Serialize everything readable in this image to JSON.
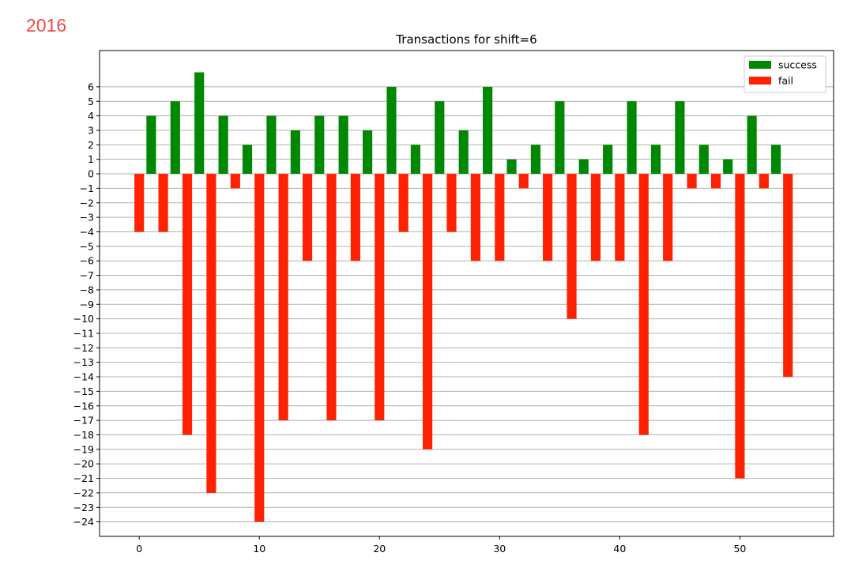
{
  "watermark": {
    "year": "2016"
  },
  "chart_data": {
    "type": "bar",
    "title": "Transactions for shift=6",
    "xlabel": "",
    "ylabel": "",
    "xlim": [
      -3.3,
      57.8
    ],
    "ylim": [
      -25,
      8.5
    ],
    "x_ticks": [
      0,
      10,
      20,
      30,
      40,
      50
    ],
    "y_ticks": [
      6,
      5,
      4,
      3,
      2,
      1,
      0,
      -1,
      -2,
      -3,
      -4,
      -5,
      -6,
      -7,
      -8,
      -9,
      -10,
      -11,
      -12,
      -13,
      -14,
      -15,
      -16,
      -17,
      -18,
      -19,
      -20,
      -21,
      -22,
      -23,
      -24
    ],
    "grid": "horizontal",
    "legend_position": "top-right",
    "colors": {
      "success": "#008800",
      "fail": "#ff2200",
      "grid": "#b0b0b0"
    },
    "series": [
      {
        "name": "success",
        "x": [
          1,
          3,
          5,
          7,
          9,
          11,
          13,
          15,
          17,
          19,
          21,
          23,
          25,
          27,
          29,
          31,
          33,
          35,
          37,
          39,
          41,
          43,
          45,
          47,
          49,
          51,
          53
        ],
        "values": [
          4,
          5,
          7,
          4,
          2,
          4,
          3,
          4,
          4,
          3,
          6,
          2,
          5,
          3,
          6,
          1,
          2,
          5,
          1,
          2,
          5,
          2,
          5,
          2,
          1,
          4,
          2
        ]
      },
      {
        "name": "fail",
        "x": [
          0,
          2,
          4,
          6,
          8,
          10,
          12,
          14,
          16,
          18,
          20,
          22,
          24,
          26,
          28,
          30,
          32,
          34,
          36,
          38,
          40,
          42,
          44,
          46,
          48,
          50,
          52,
          54
        ],
        "values": [
          -4,
          -4,
          -18,
          -22,
          -1,
          -24,
          -17,
          -6,
          -17,
          -6,
          -17,
          -4,
          -19,
          -4,
          -6,
          -6,
          -1,
          -6,
          -10,
          -6,
          -6,
          -18,
          -6,
          -1,
          -1,
          -21,
          -1,
          -14
        ]
      }
    ]
  }
}
